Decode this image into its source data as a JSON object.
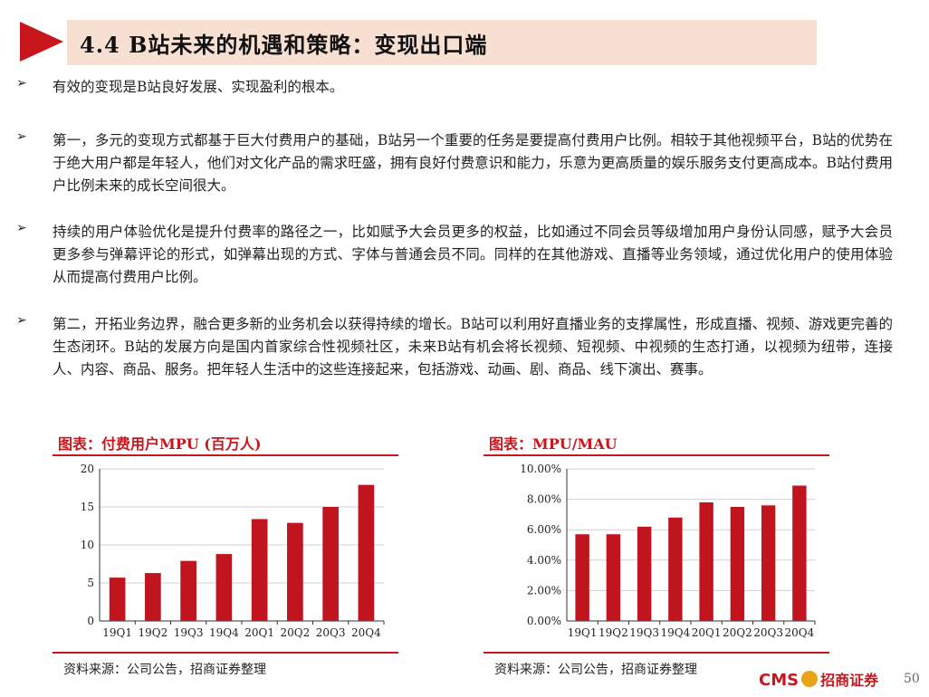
{
  "slide": {
    "title": "4.4 B站未来的机遇和策略：变现出口端",
    "bullet_symbol": "➢",
    "bullets": [
      "有效的变现是B站良好发展、实现盈利的根本。",
      "第一，多元的变现方式都基于巨大付费用户的基础，B站另一个重要的任务是要提高付费用户比例。相较于其他视频平台，B站的优势在于绝大用户都是年轻人，他们对文化产品的需求旺盛，拥有良好付费意识和能力，乐意为更高质量的娱乐服务支付更高成本。B站付费用户比例未来的成长空间很大。",
      "持续的用户体验优化是提升付费率的路径之一，比如赋予大会员更多的权益，比如通过不同会员等级增加用户身份认同感，赋予大会员更多参与弹幕评论的形式，如弹幕出现的方式、字体与普通会员不同。同样的在其他游戏、直播等业务领域，通过优化用户的使用体验从而提高付费用户比例。",
      "第二，开拓业务边界，融合更多新的业务机会以获得持续的增长。B站可以利用好直播业务的支撑属性，形成直播、视频、游戏更完善的生态闭环。B站的发展方向是国内首家综合性视频社区，未来B站有机会将长视频、短视频、中视频的生态打通，以视频为纽带，连接人、内容、商品、服务。把年轻人生活中的这些连接起来，包括游戏、动画、剧、商品、线下演出、赛事。"
    ],
    "logo_cms": "CMS",
    "logo_cn": "招商证券",
    "page_number": "50",
    "colors": {
      "accent": "#c8161d",
      "title_bg": "#f7dfd2",
      "bar": "#c0141e"
    }
  },
  "chart_data": [
    {
      "type": "bar",
      "title": "图表：付费用户MPU (百万人)",
      "categories": [
        "19Q1",
        "19Q2",
        "19Q3",
        "19Q4",
        "20Q1",
        "20Q2",
        "20Q3",
        "20Q4"
      ],
      "values": [
        5.7,
        6.3,
        7.9,
        8.8,
        13.4,
        12.9,
        15.0,
        17.9
      ],
      "ylim": [
        0,
        20
      ],
      "yticks": [
        "0",
        "5",
        "10",
        "15",
        "20"
      ],
      "xlabel": "",
      "ylabel": "",
      "source": "资料来源：公司公告，招商证券整理"
    },
    {
      "type": "bar",
      "title": "图表：MPU/MAU",
      "categories": [
        "19Q1",
        "19Q2",
        "19Q3",
        "19Q4",
        "20Q1",
        "20Q2",
        "20Q3",
        "20Q4"
      ],
      "values": [
        0.057,
        0.057,
        0.062,
        0.068,
        0.078,
        0.075,
        0.076,
        0.089
      ],
      "ylim": [
        0,
        0.1
      ],
      "yticks": [
        "0.00%",
        "2.00%",
        "4.00%",
        "6.00%",
        "8.00%",
        "10.00%"
      ],
      "xlabel": "",
      "ylabel": "",
      "source": "资料来源：公司公告，招商证券整理"
    }
  ]
}
